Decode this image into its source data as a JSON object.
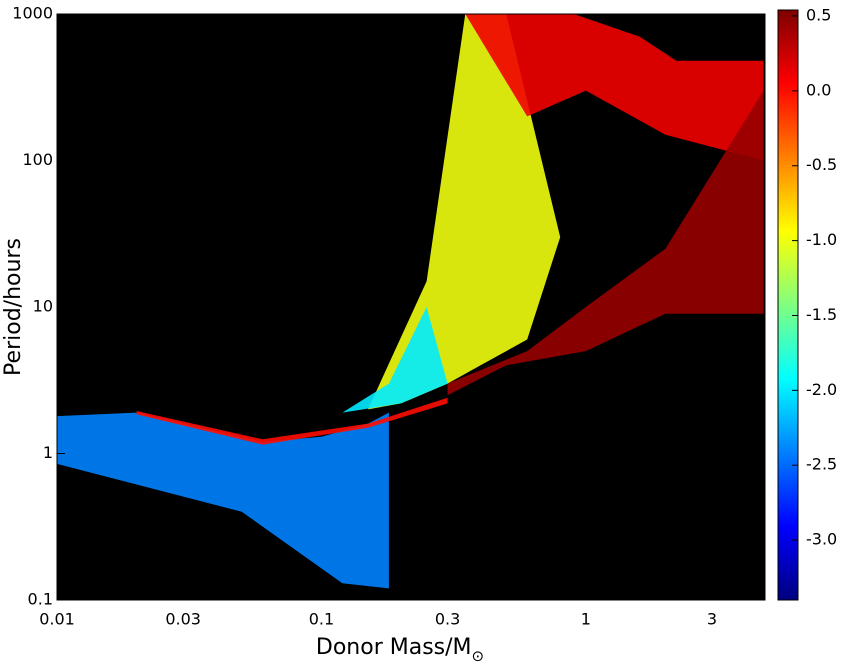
{
  "chart_data": {
    "type": "scatter",
    "x_label": "Donor Mass/M",
    "x_label_sub": "⊙",
    "y_label": "Period/hours",
    "xlog": true,
    "ylog": true,
    "xlim": [
      0.01,
      4.76
    ],
    "ylim": [
      0.1,
      1000
    ],
    "xticks": [
      0.01,
      0.03,
      0.1,
      0.3,
      1,
      3
    ],
    "yticks": [
      1000,
      100,
      10,
      1,
      0.1
    ],
    "background": "#000000",
    "colormap": "jet",
    "clim": [
      -3.4,
      0.54
    ],
    "cticks": [
      0.5,
      {
        "value": 0,
        "label": "0.0"
      },
      -0.5,
      {
        "value": -1,
        "label": "-1.0"
      },
      -1.5,
      {
        "value": -2,
        "label": "-2.0"
      },
      -2.5,
      {
        "value": -3,
        "label": "-3.0"
      }
    ],
    "regions": [
      {
        "x": [
          0.01,
          0.02,
          0.06,
          0.1,
          0.15,
          0.18,
          0.18,
          0.12,
          0.05,
          0.01
        ],
        "y": [
          1.8,
          1.9,
          1.2,
          1.3,
          1.6,
          1.9,
          0.12,
          0.13,
          0.4,
          0.85
        ],
        "c": -2.4
      },
      {
        "x": [
          0.15,
          0.25,
          0.35,
          0.5,
          0.8,
          0.6,
          0.4,
          0.3,
          0.2
        ],
        "y": [
          2,
          15,
          1000,
          1000,
          30,
          6,
          4,
          3,
          2.2
        ],
        "c": -1.0
      },
      {
        "x": [
          0.12,
          0.2,
          0.3,
          0.25,
          0.18
        ],
        "y": [
          1.9,
          2.2,
          3,
          10,
          3
        ],
        "c": -2.0
      },
      {
        "x": [
          0.35,
          0.9,
          1.6,
          2.2,
          4.7,
          4.7,
          2,
          1,
          0.6
        ],
        "y": [
          1000,
          1000,
          700,
          480,
          480,
          100,
          150,
          300,
          200
        ],
        "c": 0.1
      },
      {
        "x": [
          0.3,
          0.6,
          1,
          2,
          4.7,
          4.7,
          2,
          1,
          0.5,
          0.3
        ],
        "y": [
          3,
          5,
          10,
          25,
          300,
          9,
          9,
          5,
          4,
          2.5
        ],
        "c": 0.45
      },
      {
        "x": [
          0.02,
          0.06,
          0.15,
          0.3,
          0.3,
          0.15,
          0.06,
          0.02
        ],
        "y": [
          1.95,
          1.25,
          1.6,
          2.4,
          2.2,
          1.5,
          1.15,
          1.85
        ],
        "c": 0.0
      }
    ]
  }
}
